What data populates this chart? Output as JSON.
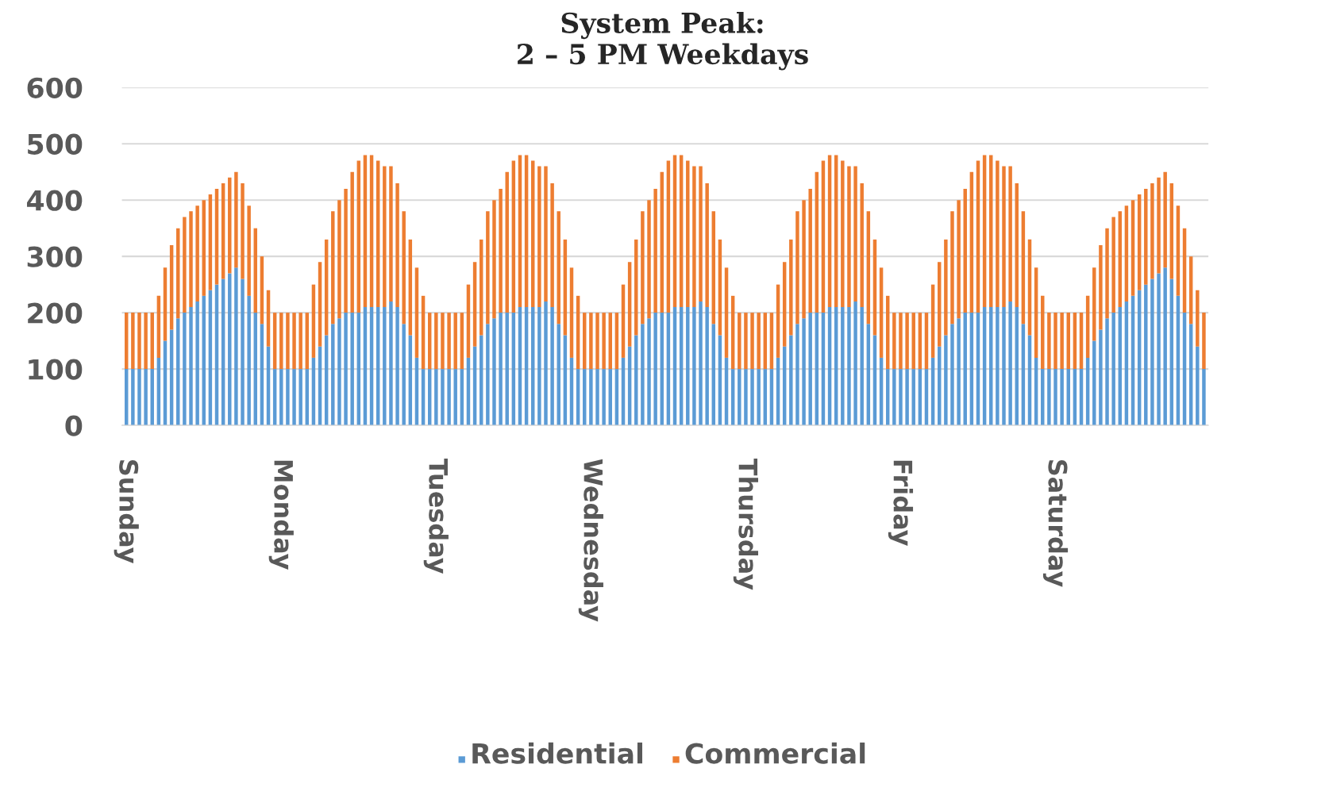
{
  "chart_data": {
    "type": "bar",
    "title": "System Peak:\n2 – 5 PM Weekdays",
    "stacked": true,
    "grid": "y",
    "legend": "bottom",
    "ylim": [
      0,
      600
    ],
    "yticks": [
      0,
      100,
      200,
      300,
      400,
      500,
      600
    ],
    "categories": [
      "Sunday",
      null,
      null,
      null,
      null,
      null,
      null,
      null,
      null,
      null,
      null,
      null,
      null,
      null,
      null,
      null,
      null,
      null,
      null,
      null,
      null,
      null,
      null,
      null,
      "Monday",
      null,
      null,
      null,
      null,
      null,
      null,
      null,
      null,
      null,
      null,
      null,
      null,
      null,
      null,
      null,
      null,
      null,
      null,
      null,
      null,
      null,
      null,
      null,
      "Tuesday",
      null,
      null,
      null,
      null,
      null,
      null,
      null,
      null,
      null,
      null,
      null,
      null,
      null,
      null,
      null,
      null,
      null,
      null,
      null,
      null,
      null,
      null,
      null,
      "Wednesday",
      null,
      null,
      null,
      null,
      null,
      null,
      null,
      null,
      null,
      null,
      null,
      null,
      null,
      null,
      null,
      null,
      null,
      null,
      null,
      null,
      null,
      null,
      null,
      "Thursday",
      null,
      null,
      null,
      null,
      null,
      null,
      null,
      null,
      null,
      null,
      null,
      null,
      null,
      null,
      null,
      null,
      null,
      null,
      null,
      null,
      null,
      null,
      null,
      "Friday",
      null,
      null,
      null,
      null,
      null,
      null,
      null,
      null,
      null,
      null,
      null,
      null,
      null,
      null,
      null,
      null,
      null,
      null,
      null,
      null,
      null,
      null,
      null,
      "Saturday",
      null,
      null,
      null,
      null,
      null,
      null,
      null,
      null,
      null,
      null,
      null,
      null,
      null,
      null,
      null,
      null,
      null,
      null,
      null,
      null,
      null,
      null,
      null
    ],
    "series": [
      {
        "name": "Residential",
        "color": "#5b9bd5",
        "values": [
          100,
          100,
          100,
          100,
          100,
          120,
          150,
          170,
          190,
          200,
          210,
          220,
          230,
          240,
          250,
          260,
          270,
          280,
          260,
          230,
          200,
          180,
          140,
          100,
          100,
          100,
          100,
          100,
          100,
          120,
          140,
          160,
          180,
          190,
          200,
          200,
          200,
          210,
          210,
          210,
          210,
          220,
          210,
          180,
          160,
          120,
          100,
          100,
          100,
          100,
          100,
          100,
          100,
          120,
          140,
          160,
          180,
          190,
          200,
          200,
          200,
          210,
          210,
          210,
          210,
          220,
          210,
          180,
          160,
          120,
          100,
          100,
          100,
          100,
          100,
          100,
          100,
          120,
          140,
          160,
          180,
          190,
          200,
          200,
          200,
          210,
          210,
          210,
          210,
          220,
          210,
          180,
          160,
          120,
          100,
          100,
          100,
          100,
          100,
          100,
          100,
          120,
          140,
          160,
          180,
          190,
          200,
          200,
          200,
          210,
          210,
          210,
          210,
          220,
          210,
          180,
          160,
          120,
          100,
          100,
          100,
          100,
          100,
          100,
          100,
          120,
          140,
          160,
          180,
          190,
          200,
          200,
          200,
          210,
          210,
          210,
          210,
          220,
          210,
          180,
          160,
          120,
          100,
          100,
          100,
          100,
          100,
          100,
          100,
          120,
          150,
          170,
          190,
          200,
          210,
          220,
          230,
          240,
          250,
          260,
          270,
          280,
          260,
          230,
          200,
          180,
          140,
          100
        ]
      },
      {
        "name": "Commercial",
        "color": "#ed7d31",
        "values": [
          100,
          100,
          100,
          100,
          100,
          110,
          130,
          150,
          160,
          170,
          170,
          170,
          170,
          170,
          170,
          170,
          170,
          170,
          170,
          160,
          150,
          120,
          100,
          100,
          100,
          100,
          100,
          100,
          100,
          130,
          150,
          170,
          200,
          210,
          220,
          250,
          270,
          270,
          270,
          260,
          250,
          240,
          220,
          200,
          170,
          160,
          130,
          100,
          100,
          100,
          100,
          100,
          100,
          130,
          150,
          170,
          200,
          210,
          220,
          250,
          270,
          270,
          270,
          260,
          250,
          240,
          220,
          200,
          170,
          160,
          130,
          100,
          100,
          100,
          100,
          100,
          100,
          130,
          150,
          170,
          200,
          210,
          220,
          250,
          270,
          270,
          270,
          260,
          250,
          240,
          220,
          200,
          170,
          160,
          130,
          100,
          100,
          100,
          100,
          100,
          100,
          130,
          150,
          170,
          200,
          210,
          220,
          250,
          270,
          270,
          270,
          260,
          250,
          240,
          220,
          200,
          170,
          160,
          130,
          100,
          100,
          100,
          100,
          100,
          100,
          130,
          150,
          170,
          200,
          210,
          220,
          250,
          270,
          270,
          270,
          260,
          250,
          240,
          220,
          200,
          170,
          160,
          130,
          100,
          100,
          100,
          100,
          100,
          100,
          110,
          130,
          150,
          160,
          170,
          170,
          170,
          170,
          170,
          170,
          170,
          170,
          170,
          170,
          160,
          150,
          120,
          100,
          100
        ]
      }
    ]
  }
}
